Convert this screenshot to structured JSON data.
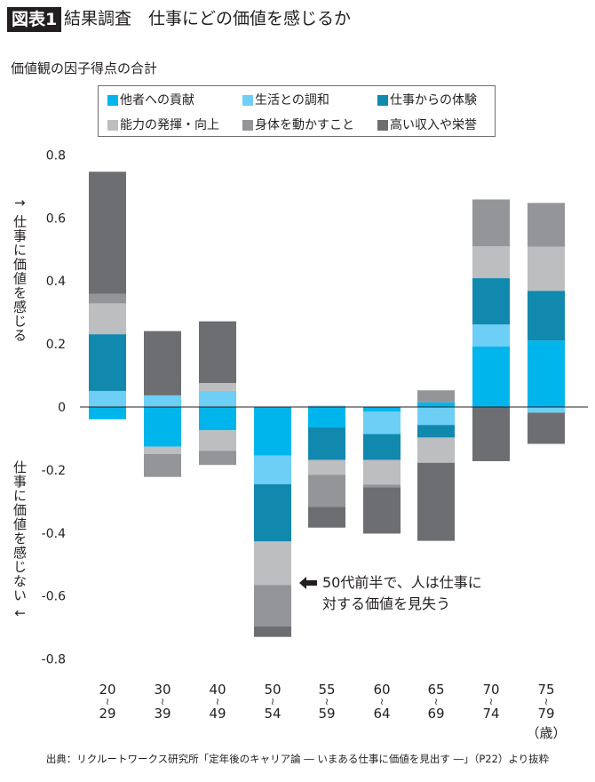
{
  "header": {
    "badge": "図表1",
    "title": "結果調査　仕事にどの価値を感じるか"
  },
  "chart_data": {
    "type": "bar",
    "stacked": true,
    "subtitle": "価値観の因子得点の合計",
    "ylabel_positive": "↑ 仕事に価値を感じる",
    "ylabel_negative": "仕事に価値を感じない ↓",
    "ylim": [
      -0.8,
      0.8
    ],
    "yticks": [
      "0.8",
      "0.6",
      "0.4",
      "0.2",
      "0",
      "-0.2",
      "-0.4",
      "-0.6",
      "-0.8"
    ],
    "ytick_values": [
      0.8,
      0.6,
      0.4,
      0.2,
      0,
      -0.2,
      -0.4,
      -0.6,
      -0.8
    ],
    "grid": false,
    "legend_placement": "top",
    "series": [
      {
        "name": "他者への貢献",
        "color": "#00b5ec"
      },
      {
        "name": "生活との調和",
        "color": "#6dcff6"
      },
      {
        "name": "仕事からの体験",
        "color": "#1188ad"
      },
      {
        "name": "能力の発揮・向上",
        "color": "#bcbec0"
      },
      {
        "name": "身体を動かすこと",
        "color": "#939598"
      },
      {
        "name": "高い収入や栄誉",
        "color": "#6d6e71"
      }
    ],
    "categories": [
      {
        "from": "20",
        "to": "29"
      },
      {
        "from": "30",
        "to": "39"
      },
      {
        "from": "40",
        "to": "49"
      },
      {
        "from": "50",
        "to": "54"
      },
      {
        "from": "55",
        "to": "59"
      },
      {
        "from": "60",
        "to": "64"
      },
      {
        "from": "65",
        "to": "69"
      },
      {
        "from": "70",
        "to": "74"
      },
      {
        "from": "75",
        "to": "79"
      }
    ],
    "tilde": "≀",
    "unit": "（歳）",
    "bars": [
      {
        "positive": [
          [
            1,
            0.051
          ],
          [
            2,
            0.18
          ],
          [
            3,
            0.098
          ],
          [
            4,
            0.03
          ],
          [
            5,
            0.388
          ]
        ],
        "negative": [
          [
            0,
            -0.039
          ]
        ]
      },
      {
        "positive": [
          [
            1,
            0.037
          ],
          [
            5,
            0.204
          ]
        ],
        "negative": [
          [
            0,
            -0.126
          ],
          [
            3,
            -0.023
          ],
          [
            4,
            -0.073
          ]
        ]
      },
      {
        "positive": [
          [
            1,
            0.051
          ],
          [
            3,
            0.025
          ],
          [
            5,
            0.196
          ]
        ],
        "negative": [
          [
            0,
            -0.074
          ],
          [
            3,
            -0.065
          ],
          [
            4,
            -0.045
          ]
        ]
      },
      {
        "positive": [],
        "negative": [
          [
            0,
            -0.154
          ],
          [
            1,
            -0.091
          ],
          [
            2,
            -0.182
          ],
          [
            3,
            -0.138
          ],
          [
            4,
            -0.132
          ],
          [
            5,
            -0.033
          ]
        ]
      },
      {
        "positive": [
          [
            1,
            0.004
          ]
        ],
        "negative": [
          [
            0,
            -0.065
          ],
          [
            2,
            -0.103
          ],
          [
            3,
            -0.047
          ],
          [
            4,
            -0.102
          ],
          [
            5,
            -0.066
          ]
        ]
      },
      {
        "positive": [],
        "negative": [
          [
            0,
            -0.015
          ],
          [
            1,
            -0.071
          ],
          [
            2,
            -0.082
          ],
          [
            3,
            -0.078
          ],
          [
            4,
            -0.009
          ],
          [
            5,
            -0.147
          ]
        ]
      },
      {
        "positive": [
          [
            0,
            0.015
          ],
          [
            4,
            0.038
          ]
        ],
        "negative": [
          [
            1,
            -0.057
          ],
          [
            2,
            -0.04
          ],
          [
            3,
            -0.08
          ],
          [
            5,
            -0.248
          ]
        ]
      },
      {
        "positive": [
          [
            0,
            0.192
          ],
          [
            1,
            0.07
          ],
          [
            2,
            0.147
          ],
          [
            3,
            0.101
          ],
          [
            4,
            0.149
          ]
        ],
        "negative": [
          [
            5,
            -0.172
          ]
        ]
      },
      {
        "positive": [
          [
            0,
            0.211
          ],
          [
            2,
            0.158
          ],
          [
            3,
            0.14
          ],
          [
            4,
            0.139
          ]
        ],
        "negative": [
          [
            1,
            -0.018
          ],
          [
            5,
            -0.099
          ]
        ]
      }
    ],
    "annotation": {
      "line1": "50代前半で、人は仕事に",
      "line2": "対する価値を見失う"
    }
  },
  "source": "出典：リクルートワークス研究所「定年後のキャリア論 ― いまある仕事に価値を見出す ―」（P22）より抜粋"
}
